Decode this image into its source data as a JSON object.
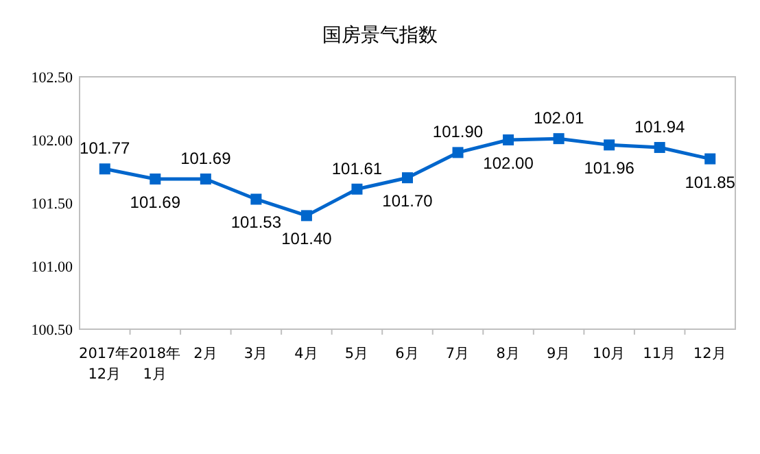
{
  "chart_data": {
    "type": "line",
    "title": "国房景气指数",
    "categories": [
      "2017年\n12月",
      "2018年\n1月",
      "2月",
      "3月",
      "4月",
      "5月",
      "6月",
      "7月",
      "8月",
      "9月",
      "10月",
      "11月",
      "12月"
    ],
    "values": [
      101.77,
      101.69,
      101.69,
      101.53,
      101.4,
      101.61,
      101.7,
      101.9,
      102.0,
      102.01,
      101.96,
      101.94,
      101.85
    ],
    "value_labels": [
      "101.77",
      "101.69",
      "101.69",
      "101.53",
      "101.40",
      "101.61",
      "101.70",
      "101.90",
      "102.00",
      "102.01",
      "101.96",
      "101.94",
      "101.85"
    ],
    "color": "#0066cc",
    "marker": "square",
    "ylim": [
      100.5,
      102.5
    ],
    "yticks": [
      {
        "value": 100.5,
        "label": "100.50"
      },
      {
        "value": 101,
        "label": "101.00"
      },
      {
        "value": 101.5,
        "label": "101.50"
      },
      {
        "value": 102,
        "label": "102.00"
      },
      {
        "value": 102.5,
        "label": "102.50"
      }
    ]
  }
}
